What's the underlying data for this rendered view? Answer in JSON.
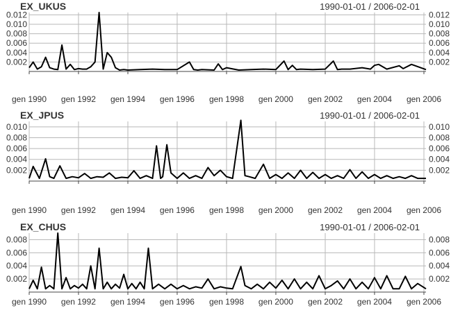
{
  "chart_data": [
    {
      "type": "line",
      "title": "EX_UKUS",
      "date_range": "1990-01-01 / 2006-02-01",
      "x_range": [
        "1990-01-01",
        "2006-02-01"
      ],
      "ylim": [
        0,
        0.0125
      ],
      "yticks": [
        0.002,
        0.004,
        0.006,
        0.008,
        0.01,
        0.012
      ],
      "ytick_labels": [
        "0.002",
        "0.004",
        "0.006",
        "0.008",
        "0.010",
        "0.012"
      ],
      "xticks": [
        "1990-01-01",
        "1992-01-01",
        "1994-01-01",
        "1996-01-01",
        "1998-01-01",
        "2000-01-01",
        "2002-01-01",
        "2004-01-01",
        "2006-01-01"
      ],
      "xtick_labels": [
        "gen 1990",
        "gen 1992",
        "gen 1994",
        "gen 1996",
        "gen 1998",
        "gen 2000",
        "gen 2002",
        "gen 2004",
        "gen 2006"
      ],
      "grid": true,
      "x": [
        "1990-01-01",
        "1990-03-01",
        "1990-05-01",
        "1990-07-01",
        "1990-09-01",
        "1990-11-01",
        "1991-01-01",
        "1991-03-01",
        "1991-05-01",
        "1991-07-01",
        "1991-09-01",
        "1991-11-01",
        "1992-01-01",
        "1992-03-01",
        "1992-05-01",
        "1992-07-01",
        "1992-09-01",
        "1992-11-01",
        "1993-01-01",
        "1993-03-01",
        "1993-05-01",
        "1993-07-01",
        "1993-09-01",
        "1993-11-01",
        "1994-01-01",
        "1994-07-01",
        "1995-01-01",
        "1995-07-01",
        "1996-01-01",
        "1996-07-01",
        "1996-09-01",
        "1996-11-01",
        "1997-01-01",
        "1997-07-01",
        "1997-09-01",
        "1997-11-01",
        "1998-01-01",
        "1998-07-01",
        "1999-01-01",
        "1999-07-01",
        "2000-01-01",
        "2000-05-01",
        "2000-07-01",
        "2000-09-01",
        "2000-11-01",
        "2001-01-01",
        "2001-07-01",
        "2002-01-01",
        "2002-05-01",
        "2002-07-01",
        "2002-09-01",
        "2003-01-01",
        "2003-07-01",
        "2003-11-01",
        "2004-01-01",
        "2004-03-01",
        "2004-07-01",
        "2005-01-01",
        "2005-03-01",
        "2005-07-01",
        "2006-02-01"
      ],
      "values": [
        0.0008,
        0.002,
        0.0005,
        0.001,
        0.003,
        0.0008,
        0.0005,
        0.0004,
        0.0056,
        0.0005,
        0.0015,
        0.0004,
        0.0006,
        0.0005,
        0.0005,
        0.001,
        0.002,
        0.0125,
        0.0005,
        0.004,
        0.003,
        0.0008,
        0.0003,
        0.0004,
        0.0003,
        0.0004,
        0.0005,
        0.0004,
        0.0004,
        0.002,
        0.0004,
        0.0003,
        0.0004,
        0.0003,
        0.0016,
        0.0004,
        0.0008,
        0.0003,
        0.0004,
        0.0005,
        0.0004,
        0.0022,
        0.0004,
        0.0013,
        0.0004,
        0.0005,
        0.0004,
        0.0005,
        0.0022,
        0.0004,
        0.0005,
        0.0005,
        0.0008,
        0.0005,
        0.0013,
        0.0015,
        0.0005,
        0.0012,
        0.0006,
        0.0015,
        0.0004
      ]
    },
    {
      "type": "line",
      "title": "EX_JPUS",
      "date_range": "1990-01-01 / 2006-02-01",
      "x_range": [
        "1990-01-01",
        "2006-02-01"
      ],
      "ylim": [
        0,
        0.011
      ],
      "yticks": [
        0.002,
        0.004,
        0.006,
        0.008,
        0.01
      ],
      "ytick_labels": [
        "0.002",
        "0.004",
        "0.006",
        "0.008",
        "0.010"
      ],
      "xticks": [
        "1990-01-01",
        "1992-01-01",
        "1994-01-01",
        "1996-01-01",
        "1998-01-01",
        "2000-01-01",
        "2002-01-01",
        "2004-01-01",
        "2006-01-01"
      ],
      "xtick_labels": [
        "gen 1990",
        "gen 1992",
        "gen 1994",
        "gen 1996",
        "gen 1998",
        "gen 2000",
        "gen 2002",
        "gen 2004",
        "gen 2006"
      ],
      "grid": true,
      "x": [
        "1990-01-01",
        "1990-03-01",
        "1990-06-01",
        "1990-09-01",
        "1990-11-01",
        "1991-01-01",
        "1991-04-01",
        "1991-07-01",
        "1991-10-01",
        "1992-01-01",
        "1992-04-01",
        "1992-07-01",
        "1992-10-01",
        "1993-01-01",
        "1993-04-01",
        "1993-07-01",
        "1993-10-01",
        "1994-01-01",
        "1994-04-01",
        "1994-07-01",
        "1994-10-01",
        "1995-01-01",
        "1995-03-01",
        "1995-05-01",
        "1995-06-01",
        "1995-08-01",
        "1995-10-01",
        "1996-01-01",
        "1996-04-01",
        "1996-07-01",
        "1996-10-01",
        "1997-01-01",
        "1997-04-01",
        "1997-07-01",
        "1997-10-01",
        "1998-01-01",
        "1998-04-01",
        "1998-08-01",
        "1998-10-01",
        "1998-12-01",
        "1999-03-01",
        "1999-07-01",
        "1999-10-01",
        "2000-01-01",
        "2000-04-01",
        "2000-07-01",
        "2000-10-01",
        "2001-01-01",
        "2001-04-01",
        "2001-07-01",
        "2001-10-01",
        "2002-01-01",
        "2002-04-01",
        "2002-07-01",
        "2002-10-01",
        "2003-01-01",
        "2003-04-01",
        "2003-07-01",
        "2003-10-01",
        "2004-01-01",
        "2004-04-01",
        "2004-07-01",
        "2004-10-01",
        "2005-01-01",
        "2005-04-01",
        "2005-07-01",
        "2005-10-01",
        "2006-02-01"
      ],
      "values": [
        0.0005,
        0.0027,
        0.0005,
        0.0041,
        0.0008,
        0.0005,
        0.0028,
        0.0005,
        0.0008,
        0.0006,
        0.0014,
        0.0005,
        0.0008,
        0.0007,
        0.0015,
        0.0005,
        0.0007,
        0.0006,
        0.0019,
        0.0005,
        0.001,
        0.0005,
        0.0065,
        0.0005,
        0.0008,
        0.0067,
        0.0015,
        0.0005,
        0.0015,
        0.0005,
        0.001,
        0.0005,
        0.0025,
        0.001,
        0.002,
        0.0008,
        0.0005,
        0.0112,
        0.001,
        0.0008,
        0.0005,
        0.0031,
        0.0005,
        0.0012,
        0.0005,
        0.0015,
        0.0005,
        0.002,
        0.0005,
        0.0016,
        0.0005,
        0.0012,
        0.0005,
        0.001,
        0.0005,
        0.0021,
        0.0005,
        0.0017,
        0.0005,
        0.0012,
        0.0005,
        0.001,
        0.0005,
        0.0008,
        0.0005,
        0.001,
        0.0005,
        0.0005
      ]
    },
    {
      "type": "line",
      "title": "EX_CHUS",
      "date_range": "1990-01-01 / 2006-02-01",
      "x_range": [
        "1990-01-01",
        "2006-02-01"
      ],
      "ylim": [
        0,
        0.009
      ],
      "yticks": [
        0.002,
        0.004,
        0.006,
        0.008
      ],
      "ytick_labels": [
        "0.002",
        "0.004",
        "0.006",
        "0.008"
      ],
      "xticks": [
        "1990-01-01",
        "1992-01-01",
        "1994-01-01",
        "1996-01-01",
        "1998-01-01",
        "2000-01-01",
        "2002-01-01",
        "2004-01-01",
        "2006-01-01"
      ],
      "xtick_labels": [
        "gen 1990",
        "gen 1992",
        "gen 1994",
        "gen 1996",
        "gen 1998",
        "gen 2000",
        "gen 2002",
        "gen 2004",
        "gen 2006"
      ],
      "grid": true,
      "x": [
        "1990-01-01",
        "1990-03-01",
        "1990-05-01",
        "1990-07-01",
        "1990-09-01",
        "1990-11-01",
        "1991-01-01",
        "1991-03-01",
        "1991-05-01",
        "1991-07-01",
        "1991-09-01",
        "1991-11-01",
        "1992-01-01",
        "1992-03-01",
        "1992-05-01",
        "1992-07-01",
        "1992-09-01",
        "1992-11-01",
        "1993-01-01",
        "1993-03-01",
        "1993-05-01",
        "1993-07-01",
        "1993-09-01",
        "1993-11-01",
        "1994-01-01",
        "1994-03-01",
        "1994-05-01",
        "1994-07-01",
        "1994-09-01",
        "1994-11-01",
        "1995-01-01",
        "1995-04-01",
        "1995-07-01",
        "1995-10-01",
        "1996-01-01",
        "1996-04-01",
        "1996-07-01",
        "1996-10-01",
        "1997-01-01",
        "1997-04-01",
        "1997-07-01",
        "1997-10-01",
        "1998-01-01",
        "1998-04-01",
        "1998-08-01",
        "1998-10-01",
        "1999-01-01",
        "1999-04-01",
        "1999-07-01",
        "1999-10-01",
        "2000-01-01",
        "2000-04-01",
        "2000-07-01",
        "2000-10-01",
        "2001-01-01",
        "2001-04-01",
        "2001-07-01",
        "2001-10-01",
        "2002-01-01",
        "2002-04-01",
        "2002-07-01",
        "2002-10-01",
        "2003-01-01",
        "2003-04-01",
        "2003-07-01",
        "2003-10-01",
        "2004-01-01",
        "2004-04-01",
        "2004-07-01",
        "2004-10-01",
        "2005-01-01",
        "2005-04-01",
        "2005-07-01",
        "2005-10-01",
        "2006-02-01"
      ],
      "values": [
        0.0005,
        0.0018,
        0.0005,
        0.0038,
        0.0005,
        0.001,
        0.0005,
        0.009,
        0.0005,
        0.0022,
        0.0005,
        0.001,
        0.0006,
        0.0012,
        0.0005,
        0.004,
        0.0005,
        0.0067,
        0.0005,
        0.0015,
        0.0005,
        0.0012,
        0.0006,
        0.0027,
        0.0005,
        0.0013,
        0.0005,
        0.0015,
        0.0005,
        0.0067,
        0.0005,
        0.0012,
        0.0005,
        0.0012,
        0.0005,
        0.001,
        0.0005,
        0.0008,
        0.0006,
        0.002,
        0.0005,
        0.0008,
        0.0006,
        0.0005,
        0.0039,
        0.001,
        0.0005,
        0.0012,
        0.0005,
        0.0015,
        0.0006,
        0.0018,
        0.0005,
        0.002,
        0.0005,
        0.0015,
        0.0005,
        0.0025,
        0.0005,
        0.001,
        0.0017,
        0.0005,
        0.002,
        0.0005,
        0.0015,
        0.0005,
        0.0022,
        0.0005,
        0.0025,
        0.0005,
        0.0005,
        0.0024,
        0.0005,
        0.0013,
        0.0005
      ]
    }
  ]
}
